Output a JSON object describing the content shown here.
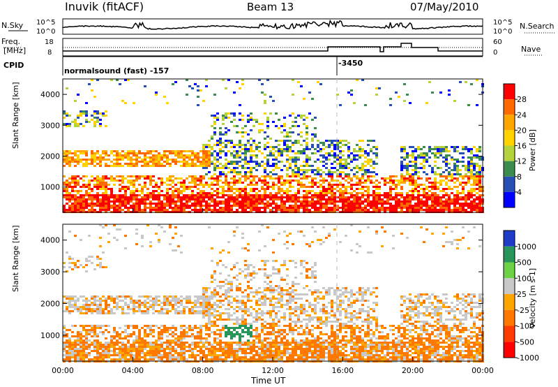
{
  "header": {
    "station": "Inuvik (fitACF)",
    "beam": "Beam 13",
    "date": "07/May/2010"
  },
  "strip_labels": {
    "nsky": "N.Sky",
    "nsky_ticks": [
      "10^5",
      "10^0"
    ],
    "nsearch": "N.Search",
    "nsearch_ticks": [
      "10^5",
      "10^0"
    ],
    "freq": "Freq.",
    "freq_unit": "[MHz]",
    "freq_ticks": [
      "18",
      "8"
    ],
    "nave": "Nave",
    "nave_ticks": [
      "60",
      "0"
    ],
    "cpid": "CPID",
    "cpid_text": "normalsound (fast) -157",
    "cpid_text2": "-3450"
  },
  "chart_data": [
    {
      "type": "heatmap",
      "name": "power",
      "ylabel": "Slant Range [km]",
      "xlabel": "",
      "colorbar_label": "Power [dB]",
      "colorbar_ticks": [
        "28",
        "24",
        "20",
        "16",
        "12",
        "8",
        "4"
      ],
      "colorbar_colors": [
        "#ff0000",
        "#ff6a00",
        "#ffa500",
        "#ffd200",
        "#b4d23c",
        "#3c8c50",
        "#2850b4",
        "#0000ff"
      ],
      "y_ticks": [
        "4000",
        "3000",
        "2000",
        "1000"
      ],
      "ylim": [
        180,
        4500
      ],
      "xlim": [
        "00:00",
        "24:00"
      ]
    },
    {
      "type": "heatmap",
      "name": "velocity",
      "ylabel": "Slant Range [km]",
      "xlabel": "Time UT",
      "colorbar_label": "Velocity [m s-1]",
      "colorbar_ticks": [
        "1000",
        "500",
        "100",
        "25",
        "-25",
        "-100",
        "-500",
        "-1000"
      ],
      "colorbar_colors": [
        "#1e3cc8",
        "#28965a",
        "#6ed246",
        "#c8c8c8",
        "#ffa500",
        "#ff7800",
        "#ff3c00",
        "#ff0000"
      ],
      "y_ticks": [
        "4000",
        "3000",
        "2000",
        "1000"
      ],
      "ylim": [
        180,
        4500
      ],
      "x_ticks": [
        "00:00",
        "04:00",
        "08:00",
        "12:00",
        "16:00",
        "20:00",
        "00:00"
      ]
    }
  ]
}
